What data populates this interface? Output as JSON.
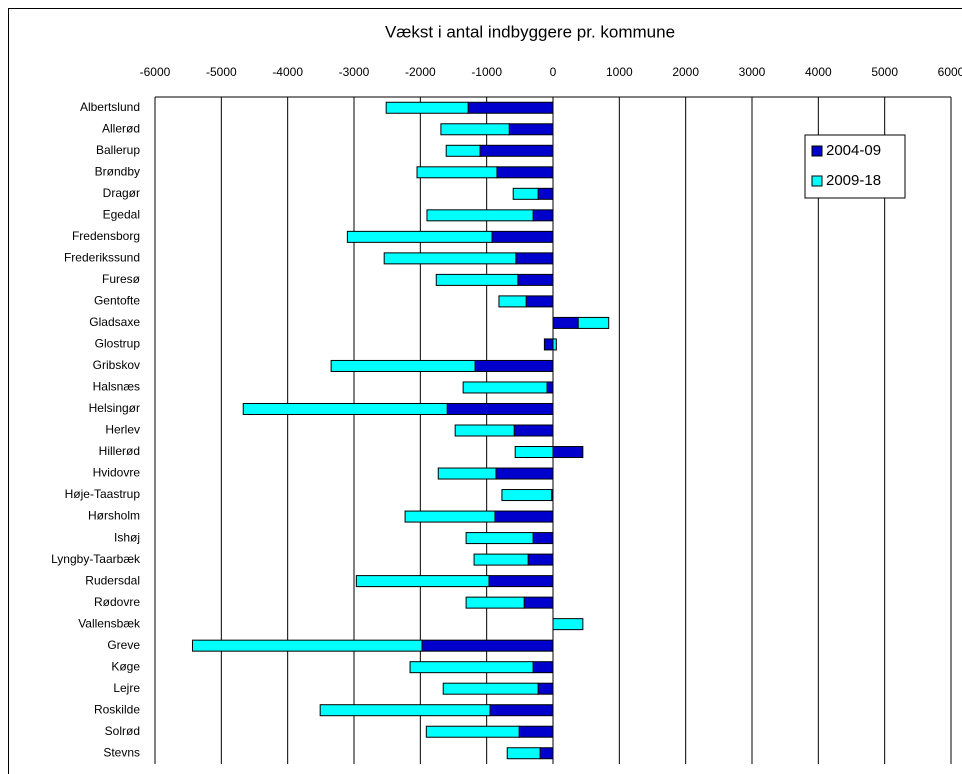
{
  "chart_data": {
    "type": "stacked-bar",
    "title": "Vækst i antal indbyggere pr. kommune",
    "categories": [
      "Albertslund",
      "Allerød",
      "Ballerup",
      "Brøndby",
      "Dragør",
      "Egedal",
      "Fredensborg",
      "Frederikssund",
      "Furesø",
      "Gentofte",
      "Gladsaxe",
      "Glostrup",
      "Gribskov",
      "Halsnæs",
      "Helsingør",
      "Herlev",
      "Hillerød",
      "Hvidovre",
      "Høje-Taastrup",
      "Hørsholm",
      "Ishøj",
      "Lyngby-Taarbæk",
      "Rudersdal",
      "Rødovre",
      "Vallensbæk",
      "Greve",
      "Køge",
      "Lejre",
      "Roskilde",
      "Solrød",
      "Stevns"
    ],
    "series": [
      {
        "name": "2004-09",
        "color": "#0000cc",
        "values": [
          -1280,
          -660,
          -1100,
          -845,
          -225,
          -300,
          -920,
          -560,
          -530,
          -405,
          380,
          -130,
          -1175,
          -90,
          -1595,
          -585,
          450,
          -860,
          -20,
          -875,
          -300,
          -375,
          -965,
          -435,
          0,
          -1975,
          -300,
          -225,
          -950,
          -510,
          -195
        ]
      },
      {
        "name": "2009-18",
        "color": "#00ffff",
        "values": [
          -1235,
          -1030,
          -510,
          -1205,
          -375,
          -1600,
          -2180,
          -1985,
          -1230,
          -410,
          460,
          50,
          -2170,
          -1265,
          -3075,
          -890,
          -570,
          -870,
          -750,
          -1355,
          -1010,
          -815,
          -2000,
          -875,
          450,
          -3460,
          -1855,
          -1430,
          -2560,
          -1400,
          -495
        ]
      }
    ],
    "xlim": [
      -6000,
      6000
    ],
    "xticks": [
      -6000,
      -5000,
      -4000,
      -3000,
      -2000,
      -1000,
      0,
      1000,
      2000,
      3000,
      4000,
      5000,
      6000
    ],
    "grid": true,
    "legend": "top-right"
  }
}
